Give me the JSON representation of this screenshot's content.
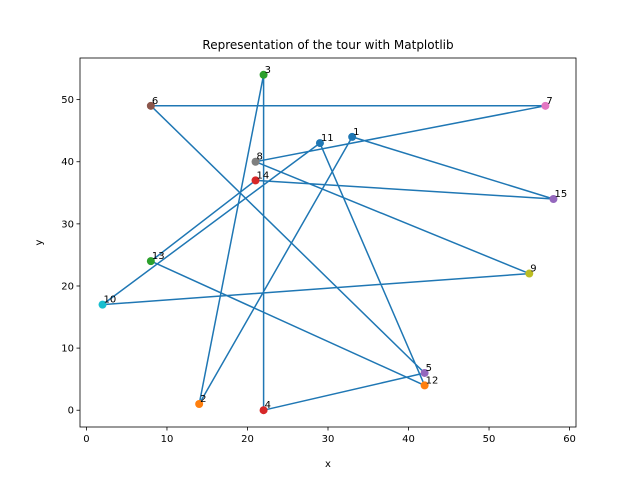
{
  "chart_data": {
    "type": "scatter",
    "title": "Representation of the tour with Matplotlib",
    "xlabel": "x",
    "ylabel": "y",
    "xlim": [
      -0.8,
      60.8
    ],
    "ylim": [
      -2.7,
      56.7
    ],
    "xticks": [
      0,
      10,
      20,
      30,
      40,
      50,
      60
    ],
    "yticks": [
      0,
      10,
      20,
      30,
      40,
      50
    ],
    "grid": false,
    "line_color": "#1f77b4",
    "points": [
      {
        "label": "1",
        "x": 33,
        "y": 44,
        "color": "#1f77b4"
      },
      {
        "label": "2",
        "x": 14,
        "y": 1,
        "color": "#ff7f0e"
      },
      {
        "label": "3",
        "x": 22,
        "y": 54,
        "color": "#2ca02c"
      },
      {
        "label": "4",
        "x": 22,
        "y": 0,
        "color": "#d62728"
      },
      {
        "label": "5",
        "x": 42,
        "y": 6,
        "color": "#9467bd"
      },
      {
        "label": "6",
        "x": 8,
        "y": 49,
        "color": "#8c564b"
      },
      {
        "label": "7",
        "x": 57,
        "y": 49,
        "color": "#e377c2"
      },
      {
        "label": "8",
        "x": 21,
        "y": 40,
        "color": "#7f7f7f"
      },
      {
        "label": "9",
        "x": 55,
        "y": 22,
        "color": "#bcbd22"
      },
      {
        "label": "10",
        "x": 2,
        "y": 17,
        "color": "#17becf"
      },
      {
        "label": "11",
        "x": 29,
        "y": 43,
        "color": "#1f77b4"
      },
      {
        "label": "12",
        "x": 42,
        "y": 4,
        "color": "#ff7f0e"
      },
      {
        "label": "13",
        "x": 8,
        "y": 24,
        "color": "#2ca02c"
      },
      {
        "label": "14",
        "x": 21,
        "y": 37,
        "color": "#d62728"
      },
      {
        "label": "15",
        "x": 58,
        "y": 34,
        "color": "#9467bd"
      }
    ],
    "tour": [
      "1",
      "15",
      "14",
      "13",
      "12",
      "11",
      "10",
      "9",
      "8",
      "7",
      "6",
      "5",
      "4",
      "3",
      "2",
      "1"
    ]
  }
}
